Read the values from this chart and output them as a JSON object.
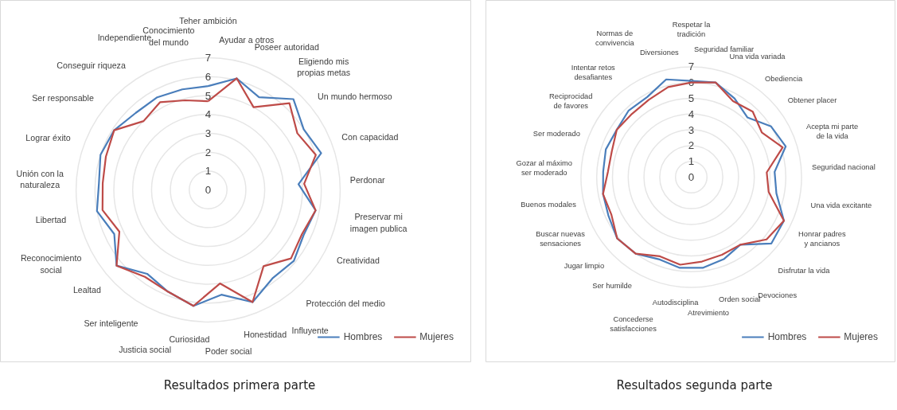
{
  "chart_data": [
    {
      "type": "radar",
      "categories": [
        "Teher ambición",
        "Ayudar a otros",
        "Poseer autoridad",
        "Eligiendo mis propias metas",
        "Un mundo hermoso",
        "Con capacidad",
        "Perdonar",
        "Preservar mi imagen publica",
        "Creatividad",
        "Protección del medio",
        "Influyente",
        "Honestidad",
        "Poder social",
        "Curiosidad",
        "Justicia social",
        "Ser inteligente",
        "Lealtad",
        "Reconocimiento social",
        "Libertad",
        "Unión con la naturaleza",
        "Lograr éxito",
        "Ser responsable",
        "Conseguir riqueza",
        "Independiente",
        "Conocimiento del mundo"
      ],
      "series": [
        {
          "name": "Hombres",
          "color": "#4a7ebb",
          "values": [
            5.5,
            6.1,
            5.6,
            6.6,
            6.0,
            6.3,
            4.8,
            5.8,
            5.6,
            5.9,
            5.8,
            6.4,
            5.6,
            6.2,
            5.8,
            5.5,
            6.3,
            5.5,
            6.0,
            5.8,
            6.0,
            5.9,
            5.6,
            5.6,
            5.5
          ]
        },
        {
          "name": "Mujeres",
          "color": "#be4b48",
          "values": [
            4.7,
            6.1,
            5.0,
            6.3,
            5.6,
            6.0,
            5.1,
            5.8,
            5.5,
            5.7,
            5.0,
            6.4,
            5.0,
            6.2,
            5.8,
            5.7,
            6.3,
            5.2,
            5.7,
            5.6,
            5.7,
            5.9,
            5.0,
            5.3,
            4.9
          ]
        }
      ],
      "ylim": [
        0,
        7
      ],
      "yticks": [
        0,
        1,
        2,
        3,
        4,
        5,
        6,
        7
      ],
      "grid": true,
      "legend": "bottom right",
      "annotations": [
        "Resultados primera parte"
      ]
    },
    {
      "type": "radar",
      "categories": [
        "Respetar la tradición",
        "Seguridad familiar",
        "Una vida variada",
        "Obediencia",
        "Obtener placer",
        "Acepta mi parte de la vida",
        "Seguridad nacional",
        "Una vida excitante",
        "Honrar padres y ancianos",
        "Disfrutar la vida",
        "Devociones",
        "Orden social",
        "Atrevimiento",
        "Autodisciplina",
        "Concederse satisfacciones",
        "Ser humilde",
        "Jugar limpio",
        "Buscar nuevas sensaciones",
        "Buenos modales",
        "Gozar al máximo ser moderado",
        "Ser moderado",
        "Reciprocidad de favores",
        "Intentar retos desafiantes",
        "Normas de convivencia",
        "Diversiones"
      ],
      "series": [
        {
          "name": "Hombres",
          "color": "#4a7ebb",
          "values": [
            6.1,
            6.2,
            5.7,
            5.2,
            6.0,
            6.3,
            5.3,
            5.5,
            6.5,
            6.6,
            5.3,
            5.6,
            5.8,
            5.8,
            5.6,
            6.0,
            6.1,
            5.8,
            5.7,
            5.6,
            5.7,
            5.6,
            5.8,
            5.8,
            6.4
          ]
        },
        {
          "name": "Mujeres",
          "color": "#be4b48",
          "values": [
            6.0,
            6.2,
            5.5,
            5.7,
            5.3,
            6.1,
            4.8,
            5.0,
            6.5,
            6.2,
            5.3,
            5.3,
            5.4,
            5.6,
            5.4,
            6.0,
            6.1,
            5.6,
            5.7,
            5.3,
            5.3,
            5.6,
            5.5,
            5.6,
            5.9
          ]
        }
      ],
      "ylim": [
        0,
        7
      ],
      "yticks": [
        0,
        1,
        2,
        3,
        4,
        5,
        6,
        7
      ],
      "grid": true,
      "legend": "bottom right",
      "annotations": [
        "Resultados segunda parte"
      ]
    }
  ]
}
